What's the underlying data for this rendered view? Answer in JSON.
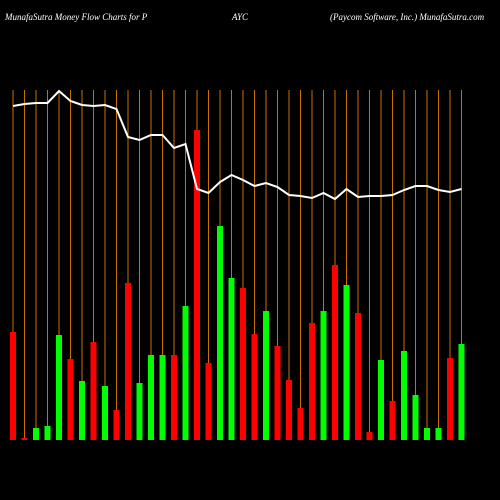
{
  "chart_data": {
    "type": "bar",
    "title_parts": [
      "MunafaSutra  Money Flow  Charts for P",
      "AYC",
      "(Paycom Software,  Inc.) MunafaSutra.com"
    ],
    "categories": [
      null,
      null,
      null,
      null,
      null,
      null,
      null,
      null,
      null,
      null,
      null,
      null,
      null,
      null,
      null,
      null,
      null,
      null,
      null,
      null,
      null,
      null,
      null,
      null,
      null,
      null,
      null,
      null,
      null,
      null,
      null,
      null,
      null,
      null,
      null,
      null,
      null,
      null,
      null,
      null
    ],
    "values": [
      108,
      2,
      12,
      14,
      105,
      81,
      59,
      98,
      54,
      30,
      157,
      57,
      85,
      85,
      85,
      134,
      310,
      77,
      214,
      162,
      152,
      106,
      129,
      94,
      60,
      32,
      117,
      129,
      175,
      155,
      127,
      8,
      80,
      39,
      89,
      45,
      12,
      12,
      82,
      96
    ],
    "colors": [
      "#ff0000",
      "#ff0000",
      "#00ff00",
      "#00ff00",
      "#00ff00",
      "#ff0000",
      "#00ff00",
      "#ff0000",
      "#00ff00",
      "#ff0000",
      "#ff0000",
      "#00ff00",
      "#00ff00",
      "#00ff00",
      "#ff0000",
      "#00ff00",
      "#ff0000",
      "#ff0000",
      "#00ff00",
      "#00ff00",
      "#ff0000",
      "#ff0000",
      "#00ff00",
      "#ff0000",
      "#ff0000",
      "#ff0000",
      "#ff0000",
      "#00ff00",
      "#ff0000",
      "#00ff00",
      "#ff0000",
      "#ff0000",
      "#00ff00",
      "#ff0000",
      "#00ff00",
      "#00ff00",
      "#00ff00",
      "#00ff00",
      "#ff0000",
      "#00ff00"
    ],
    "line_values": [
      334,
      336,
      337,
      337,
      349,
      339,
      335,
      334,
      335,
      331,
      303,
      300,
      305,
      305,
      292,
      296,
      251,
      247,
      258,
      265,
      260,
      254,
      257,
      253,
      245,
      244,
      242,
      247,
      241,
      251,
      243,
      244,
      244,
      245,
      250,
      254,
      254,
      250,
      248,
      251
    ],
    "line_color": "#ffffff",
    "ylim": [
      0,
      350
    ]
  }
}
